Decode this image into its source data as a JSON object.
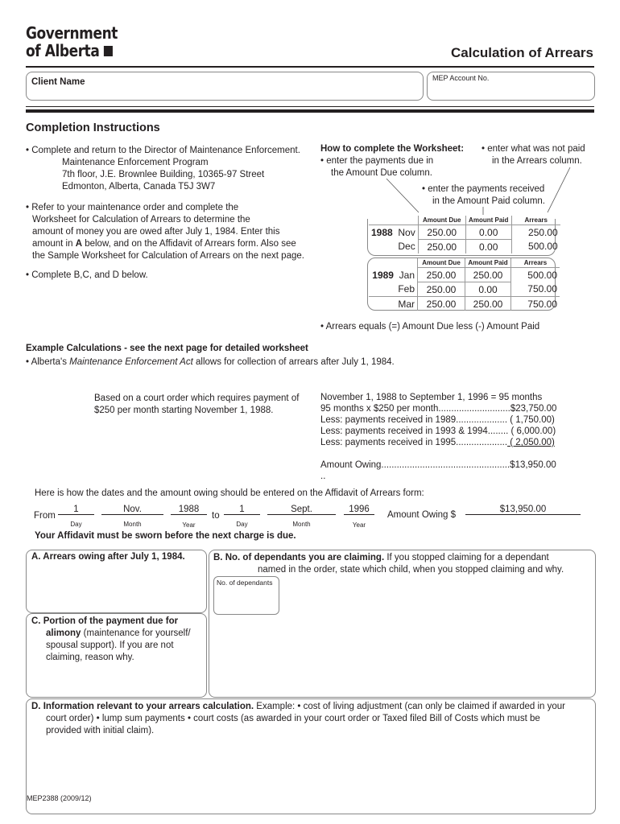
{
  "header": {
    "logo_line1": "Government",
    "logo_line2": "of Alberta",
    "title": "Calculation of Arrears"
  },
  "fields": {
    "client_name": "Client Name",
    "mep_account": "MEP Account No."
  },
  "instructions": {
    "title": "Completion Instructions",
    "bullet1": [
      "• Complete and return to the Director of Maintenance Enforcement.",
      "Maintenance Enforcement Program",
      "7th floor, J.E. Brownlee Building, 10365-97 Street",
      "Edmonton, Alberta, Canada T5J 3W7"
    ],
    "bullet2": [
      "• Refer to your maintenance order and complete the",
      "Worksheet for Calculation of Arrears to determine the",
      "amount of money you are owed after July 1, 1984. Enter this",
      "amount in A below, and on the Affidavit of Arrears form. Also see",
      "the Sample Worksheet for Calculation of Arrears on the next page."
    ],
    "bullet3": "• Complete B,C, and D below."
  },
  "worksheet": {
    "title": "How to complete the Worksheet:",
    "tip_due": [
      "• enter the payments due in",
      "the Amount Due column."
    ],
    "tip_arrears": [
      "• enter what was not paid",
      "in the Arrears column."
    ],
    "tip_paid": [
      "• enter the payments received",
      "in the Amount Paid column."
    ],
    "columns": [
      "Amount Due",
      "Amount Paid",
      "Arrears"
    ],
    "group1": {
      "year": "1988",
      "rows": [
        {
          "month": "Nov",
          "due": "250.00",
          "paid": "0.00",
          "arrears": "250.00"
        },
        {
          "month": "Dec",
          "due": "250.00",
          "paid": "0.00",
          "arrears": "500.00"
        }
      ]
    },
    "group2": {
      "year": "1989",
      "rows": [
        {
          "month": "Jan",
          "due": "250.00",
          "paid": "250.00",
          "arrears": "500.00"
        },
        {
          "month": "Feb",
          "due": "250.00",
          "paid": "0.00",
          "arrears": "750.00"
        },
        {
          "month": "Mar",
          "due": "250.00",
          "paid": "250.00",
          "arrears": "750.00"
        }
      ]
    },
    "note": "• Arrears equals (=) Amount Due less (-) Amount Paid"
  },
  "example": {
    "title": "Example Calculations - see the next page for detailed worksheet",
    "act_pre": "• Alberta's ",
    "act_name": "Maintenance Enforcement Act",
    "act_post": " allows for collection of arrears after July 1, 1984.",
    "order": [
      "Based on a court order which requires payment of",
      "$250 per month starting November 1, 1988."
    ],
    "calc": [
      "November 1, 1988 to September 1, 1996 = 95 months",
      "95 months x $250 per month............................$23,750.00",
      "Less: payments received in 1989.................... (  1,750.00)",
      "Less: payments received in 1993 & 1994........ (  6,000.00)"
    ],
    "calc_last_pre": "Less: payments received in 1995....................",
    "calc_last_val": " (  2,050.00)",
    "owing": "Amount Owing..................................................$13,950.00",
    "dots": "..",
    "affidavit_intro": "Here is how the dates and the amount owing should be entered on the Affidavit of Arrears form:",
    "from": "From",
    "to": "to",
    "amount_label": "Amount Owing $",
    "from_day": "1",
    "from_month": "Nov.",
    "from_year": "1988",
    "to_day": "1",
    "to_month": "Sept.",
    "to_year": "1996",
    "amount": "$13,950.00",
    "day": "Day",
    "month": "Month",
    "year": "Year",
    "sworn": "Your Affidavit must be sworn before the next charge is due."
  },
  "sections": {
    "a": "A.  Arrears owing after July 1, 1984.",
    "b_bold": "B.  No. of dependants you are claiming.",
    "b_text": " If you stopped claiming for a dependant",
    "b_text2": "named in the order, state which child, when you stopped claiming and why.",
    "dependants": "No. of dependants",
    "c_bold1": "C.  Portion of the payment due for",
    "c_bold2": "alimony",
    "c_text2": " (maintenance for yourself/",
    "c_text3": "spousal support). If you are not",
    "c_text4": "claiming, reason why.",
    "d_bold": "D.  Information relevant to your arrears calculation.",
    "d_text": " Example: • cost of living adjustment (can only be claimed if awarded in your",
    "d_text2": "court order) • lump sum payments • court costs (as awarded in your court order or Taxed filed Bill of Costs which must be",
    "d_text3": "provided with initial claim)."
  },
  "footer": {
    "form_no": "MEP2388 (2009/12)"
  }
}
